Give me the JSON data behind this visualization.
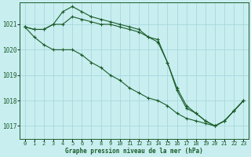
{
  "title": "Graphe pression niveau de la mer (hPa)",
  "xlabel": "Graphe pression niveau de la mer (hPa)",
  "bg_color": "#c8eef0",
  "grid_color": "#a8d8dc",
  "line_color": "#1a5c28",
  "hours": [
    0,
    1,
    2,
    3,
    4,
    5,
    6,
    7,
    8,
    9,
    10,
    11,
    12,
    13,
    14,
    15,
    16,
    17,
    18,
    19,
    20,
    21,
    22,
    23
  ],
  "line1": [
    1020.9,
    1020.8,
    1020.8,
    1021.0,
    1021.0,
    1021.3,
    1021.2,
    1021.1,
    1021.0,
    1021.0,
    1020.9,
    1020.8,
    1020.7,
    1020.5,
    1020.4,
    1019.5,
    1018.5,
    1017.8,
    1017.5,
    1017.2,
    1017.0,
    1017.2,
    1017.6,
    1018.0
  ],
  "line2": [
    1020.9,
    1020.8,
    1020.8,
    1021.0,
    1021.5,
    1021.7,
    1021.5,
    1021.3,
    1021.2,
    1021.1,
    1021.0,
    1020.9,
    1020.8,
    1020.5,
    1020.3,
    1019.5,
    1018.4,
    1017.7,
    1017.5,
    1017.2,
    1017.0,
    1017.2,
    1017.6,
    1018.0
  ],
  "line3": [
    1020.9,
    1020.5,
    1020.2,
    1020.0,
    1020.0,
    1020.0,
    1019.8,
    1019.5,
    1019.3,
    1019.0,
    1018.8,
    1018.5,
    1018.3,
    1018.1,
    1018.0,
    1017.8,
    1017.5,
    1017.3,
    1017.2,
    1017.1,
    1017.0,
    1017.2,
    1017.6,
    1018.0
  ],
  "ylim": [
    1016.5,
    1021.85
  ],
  "yticks": [
    1017,
    1018,
    1019,
    1020,
    1021
  ],
  "figwidth": 3.2,
  "figheight": 2.0,
  "dpi": 100
}
